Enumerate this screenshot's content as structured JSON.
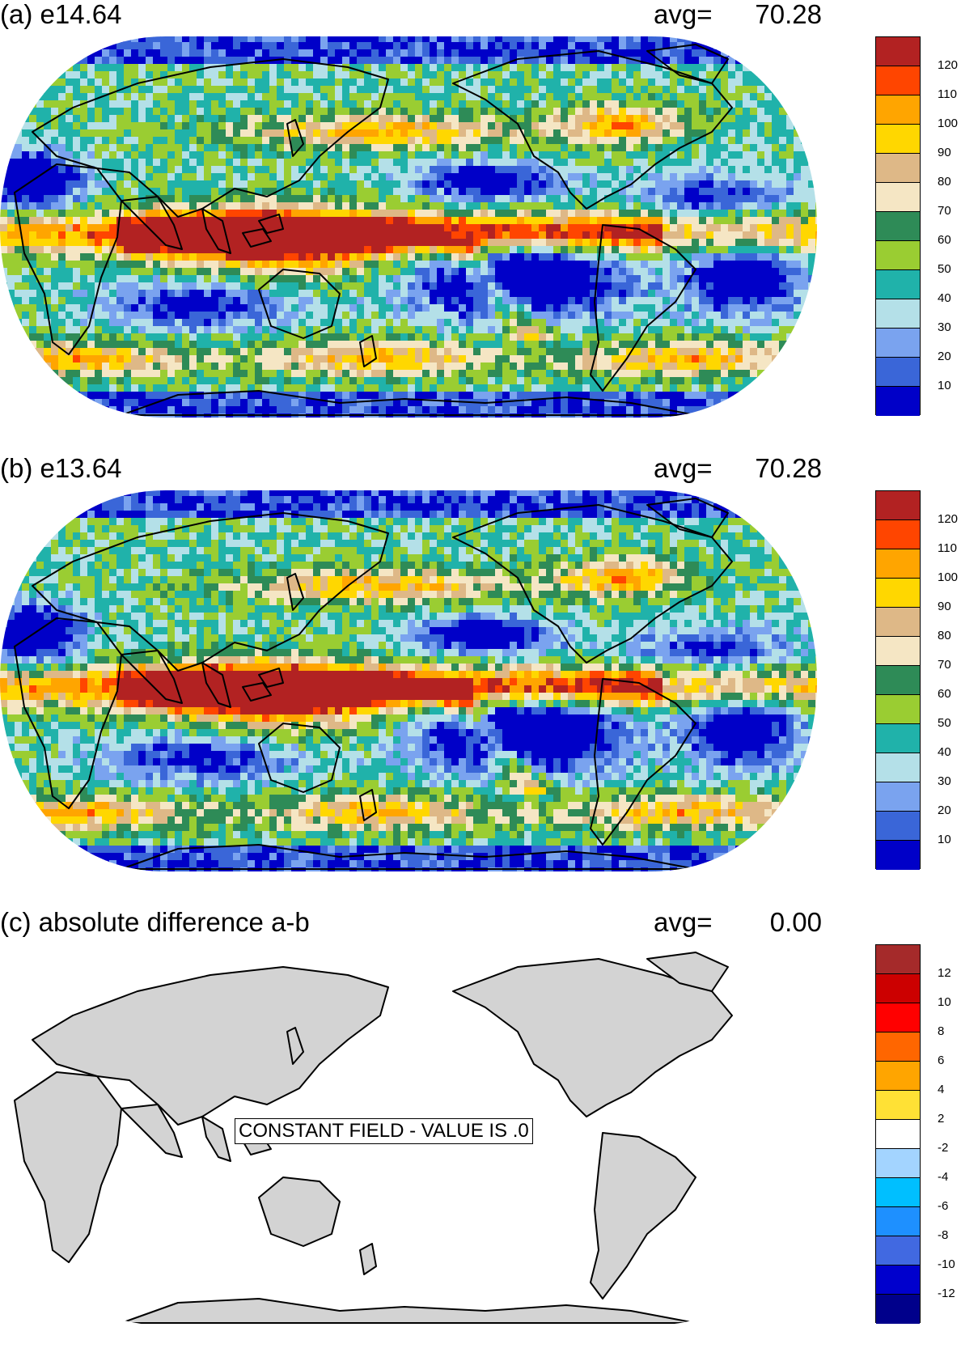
{
  "panels": [
    {
      "id": "a",
      "title": "(a) e14.64",
      "avg_label": "avg=",
      "avg_value": "70.28",
      "colorbar": {
        "colors": [
          "#0000c8",
          "#3a66d8",
          "#7aa3ef",
          "#b4e0e8",
          "#20b2aa",
          "#9acd32",
          "#2e8b57",
          "#f5e6c4",
          "#deb887",
          "#ffd700",
          "#ffa500",
          "#ff4500",
          "#b22222"
        ],
        "ticks": [
          "10",
          "20",
          "30",
          "40",
          "50",
          "60",
          "70",
          "80",
          "90",
          "100",
          "110",
          "120"
        ]
      }
    },
    {
      "id": "b",
      "title": "(b) e13.64",
      "avg_label": "avg=",
      "avg_value": "70.28",
      "colorbar": {
        "colors": [
          "#0000c8",
          "#3a66d8",
          "#7aa3ef",
          "#b4e0e8",
          "#20b2aa",
          "#9acd32",
          "#2e8b57",
          "#f5e6c4",
          "#deb887",
          "#ffd700",
          "#ffa500",
          "#ff4500",
          "#b22222"
        ],
        "ticks": [
          "10",
          "20",
          "30",
          "40",
          "50",
          "60",
          "70",
          "80",
          "90",
          "100",
          "110",
          "120"
        ]
      }
    },
    {
      "id": "c",
      "title": "(c) absolute difference a-b",
      "avg_label": "avg=",
      "avg_value": "0.00",
      "constant_field_label": "CONSTANT FIELD - VALUE IS .0",
      "colorbar": {
        "colors": [
          "#00008b",
          "#0000cd",
          "#4169e1",
          "#1e90ff",
          "#00bfff",
          "#a3d4ff",
          "#ffffff",
          "#ffe135",
          "#ffa500",
          "#ff6600",
          "#ff0000",
          "#cc0000",
          "#a52a2a"
        ],
        "ticks": [
          "-12",
          "-10",
          "-8",
          "-6",
          "-4",
          "-2",
          "2",
          "4",
          "6",
          "8",
          "10",
          "12"
        ]
      }
    }
  ],
  "map_colors": {
    "land_gray": "#d3d3d3",
    "ocean_white": "#ffffff",
    "coast": "#000000"
  }
}
